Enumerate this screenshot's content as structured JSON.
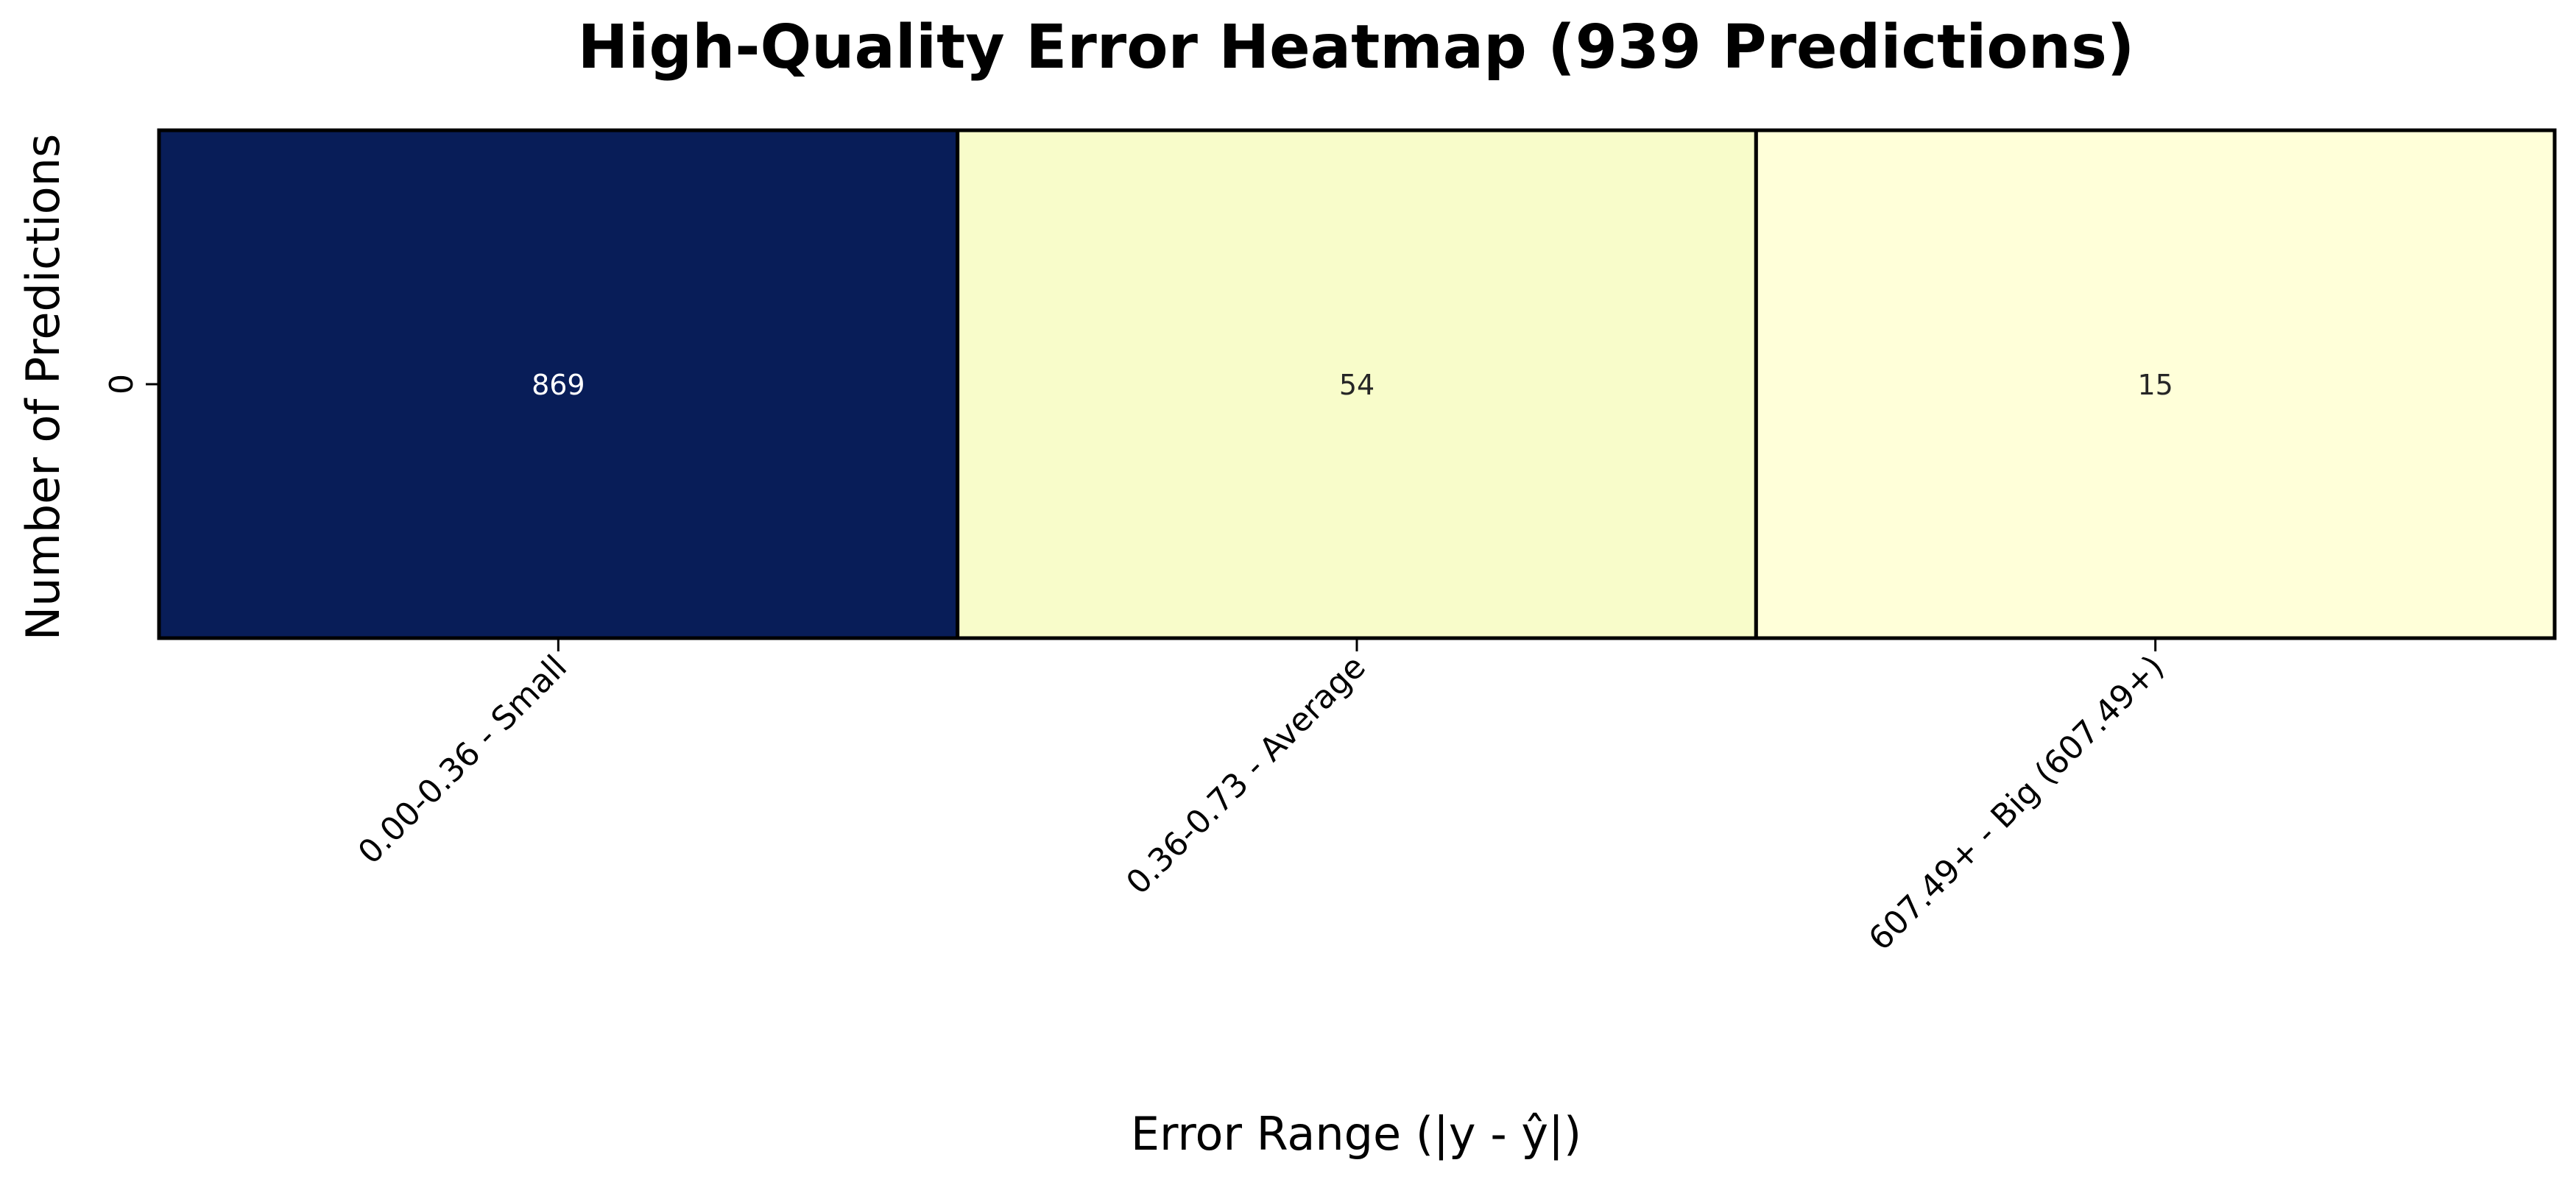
{
  "chart_data": {
    "type": "heatmap",
    "title": "High-Quality Error Heatmap (939 Predictions)",
    "xlabel": "Error Range (|y - ŷ|)",
    "ylabel": "Number of Predictions",
    "rows": [
      "0"
    ],
    "columns": [
      "0.00-0.36 - Small",
      "0.36-0.73 - Average",
      "607.49+ - Big (607.49+)"
    ],
    "values": [
      [
        869,
        54,
        15
      ]
    ],
    "colormap": "YlGnBu",
    "colorbar": false,
    "cell_colors": [
      "#081d58",
      "#f8fcca",
      "#ffffd9"
    ],
    "cell_text_colors": [
      "#ffffff",
      "#262626",
      "#262626"
    ],
    "cell_border_color": "#000000"
  }
}
